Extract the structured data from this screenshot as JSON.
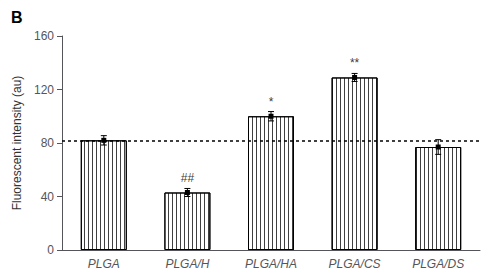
{
  "chart_data": {
    "type": "bar",
    "title": "B",
    "categories": [
      "PLGA",
      "PLGA/H",
      "PLGA/HA",
      "PLGA/CS",
      "PLGA/DS"
    ],
    "values": [
      82,
      43,
      100,
      129,
      77
    ],
    "errors": [
      3.5,
      3.0,
      3.5,
      3.0,
      5.5
    ],
    "color": "#ffffff",
    "reference_line": 82,
    "annotations": [
      {
        "category": "PLGA/H",
        "text": "##"
      },
      {
        "category": "PLGA/HA",
        "text": "*"
      },
      {
        "category": "PLGA/CS",
        "text": "**"
      }
    ],
    "ylabel": "Fluorescent intensity (au)",
    "ylim": [
      0,
      160
    ],
    "yticks": [
      0,
      40,
      80,
      120,
      160
    ],
    "grid": false
  }
}
